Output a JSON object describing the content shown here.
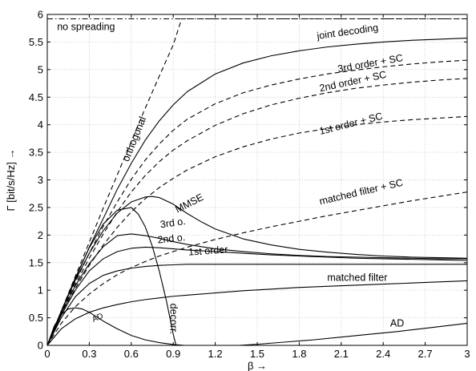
{
  "chart_data": {
    "type": "line",
    "title": "",
    "xlabel": "β →",
    "ylabel": "Γ [bit/s/Hz] →",
    "xlim": [
      0,
      3
    ],
    "ylim": [
      0,
      6
    ],
    "xticks": [
      "0",
      "0.3",
      "0.6",
      "0.9",
      "1.2",
      "1.5",
      "1.8",
      "2.1",
      "2.4",
      "2.7",
      "3"
    ],
    "yticks": [
      "0",
      "0.5",
      "1",
      "1.5",
      "2",
      "2.5",
      "3",
      "3.5",
      "4",
      "4.5",
      "5",
      "5.5",
      "6"
    ],
    "grid": true,
    "legend": "none",
    "annotations": [
      {
        "text": "no spreading",
        "x": 0.07,
        "y": 5.72,
        "rotate": 0
      },
      {
        "text": "joint decoding",
        "x": 1.93,
        "y": 5.55,
        "rotate": -8
      },
      {
        "text": "3rd order + SC",
        "x": 2.08,
        "y": 4.95,
        "rotate": -10
      },
      {
        "text": "2nd order + SC",
        "x": 1.95,
        "y": 4.6,
        "rotate": -12
      },
      {
        "text": "1st order + SC",
        "x": 1.95,
        "y": 3.82,
        "rotate": -14
      },
      {
        "text": "matched filter + SC",
        "x": 1.95,
        "y": 2.55,
        "rotate": -13
      },
      {
        "text": "orthogonal",
        "x": 0.58,
        "y": 3.32,
        "rotate": -68
      },
      {
        "text": "MMSE",
        "x": 0.93,
        "y": 2.4,
        "rotate": -27
      },
      {
        "text": "3rd o.",
        "x": 0.81,
        "y": 2.13,
        "rotate": -8
      },
      {
        "text": "2nd o.",
        "x": 0.79,
        "y": 1.85,
        "rotate": -6
      },
      {
        "text": "1st order",
        "x": 1.01,
        "y": 1.63,
        "rotate": -4
      },
      {
        "text": "matched filter",
        "x": 2.0,
        "y": 1.17,
        "rotate": 0
      },
      {
        "text": "decorr.",
        "x": 0.88,
        "y": 0.76,
        "rotate": 90
      },
      {
        "text": "AD",
        "x": 2.45,
        "y": 0.34,
        "rotate": 0
      },
      {
        "text": "AD",
        "x": 0.33,
        "y": 0.42,
        "rotate": -24,
        "small": true
      }
    ],
    "series": [
      {
        "style": "dash-dot",
        "x": [
          0,
          3
        ],
        "y": [
          5.92,
          5.92
        ]
      },
      {
        "style": "dashed",
        "x": [
          0,
          0.1,
          0.2,
          0.3,
          0.4,
          0.5,
          0.6,
          0.7,
          0.8,
          0.9,
          0.96,
          3
        ],
        "y": [
          0,
          0.62,
          1.25,
          1.87,
          2.49,
          3.09,
          3.7,
          4.3,
          4.88,
          5.45,
          5.92,
          5.92
        ]
      },
      {
        "style": "solid",
        "x": [
          0,
          0.1,
          0.2,
          0.3,
          0.4,
          0.5,
          0.6,
          0.7,
          0.8,
          0.9,
          1.0,
          1.2,
          1.4,
          1.6,
          1.8,
          2.0,
          2.2,
          2.4,
          2.6,
          2.8,
          3.0
        ],
        "y": [
          0,
          0.62,
          1.2,
          1.78,
          2.3,
          2.83,
          3.3,
          3.72,
          4.07,
          4.36,
          4.6,
          4.92,
          5.12,
          5.25,
          5.34,
          5.41,
          5.46,
          5.5,
          5.53,
          5.55,
          5.57
        ]
      },
      {
        "style": "dashed",
        "x": [
          0,
          0.1,
          0.2,
          0.3,
          0.4,
          0.5,
          0.6,
          0.7,
          0.8,
          0.9,
          1.0,
          1.2,
          1.4,
          1.6,
          1.8,
          2.0,
          2.2,
          2.4,
          2.6,
          2.8,
          3.0
        ],
        "y": [
          0,
          0.6,
          1.15,
          1.67,
          2.16,
          2.6,
          3.01,
          3.36,
          3.65,
          3.9,
          4.1,
          4.38,
          4.58,
          4.72,
          4.83,
          4.92,
          4.99,
          5.05,
          5.1,
          5.14,
          5.17
        ]
      },
      {
        "style": "dashed",
        "x": [
          0,
          0.1,
          0.2,
          0.3,
          0.4,
          0.5,
          0.6,
          0.7,
          0.8,
          0.9,
          1.0,
          1.2,
          1.4,
          1.6,
          1.8,
          2.0,
          2.2,
          2.4,
          2.6,
          2.8,
          3.0
        ],
        "y": [
          0,
          0.58,
          1.1,
          1.58,
          2.02,
          2.42,
          2.78,
          3.08,
          3.33,
          3.54,
          3.71,
          3.99,
          4.2,
          4.36,
          4.48,
          4.58,
          4.66,
          4.72,
          4.77,
          4.81,
          4.84
        ]
      },
      {
        "style": "dashed",
        "x": [
          0,
          0.1,
          0.2,
          0.3,
          0.4,
          0.5,
          0.6,
          0.7,
          0.8,
          0.9,
          1.0,
          1.2,
          1.4,
          1.6,
          1.8,
          2.0,
          2.2,
          2.4,
          2.6,
          2.8,
          3.0
        ],
        "y": [
          0,
          0.55,
          1.03,
          1.45,
          1.82,
          2.14,
          2.42,
          2.66,
          2.86,
          3.03,
          3.18,
          3.42,
          3.6,
          3.74,
          3.85,
          3.93,
          4.0,
          4.05,
          4.09,
          4.12,
          4.15
        ]
      },
      {
        "style": "dashed",
        "x": [
          0,
          0.1,
          0.2,
          0.3,
          0.4,
          0.5,
          0.6,
          0.7,
          0.8,
          0.9,
          1.0,
          1.2,
          1.4,
          1.6,
          1.8,
          2.0,
          2.2,
          2.4,
          2.6,
          2.8,
          3.0
        ],
        "y": [
          0,
          0.4,
          0.7,
          0.93,
          1.12,
          1.28,
          1.41,
          1.52,
          1.62,
          1.7,
          1.78,
          1.92,
          2.04,
          2.15,
          2.25,
          2.35,
          2.44,
          2.53,
          2.62,
          2.7,
          2.78
        ]
      },
      {
        "style": "solid",
        "x": [
          0,
          0.1,
          0.2,
          0.3,
          0.4,
          0.5,
          0.6,
          0.7,
          0.75,
          0.8,
          0.9,
          1.0,
          1.1,
          1.2,
          1.4,
          1.6,
          1.8,
          2.0,
          2.2,
          2.4,
          2.6,
          2.8,
          3.0
        ],
        "y": [
          0,
          0.62,
          1.18,
          1.67,
          2.08,
          2.4,
          2.6,
          2.69,
          2.7,
          2.68,
          2.56,
          2.39,
          2.24,
          2.11,
          1.93,
          1.82,
          1.74,
          1.69,
          1.65,
          1.62,
          1.6,
          1.59,
          1.58
        ]
      },
      {
        "style": "solid",
        "x": [
          0,
          0.1,
          0.2,
          0.3,
          0.4,
          0.5,
          0.6,
          0.7,
          0.8,
          0.9,
          1.0,
          1.2,
          1.4,
          1.6,
          1.8,
          2.0,
          2.2,
          2.4,
          2.6,
          2.8,
          3.0
        ],
        "y": [
          0,
          0.58,
          1.08,
          1.48,
          1.79,
          1.99,
          2.02,
          1.99,
          1.94,
          1.88,
          1.83,
          1.75,
          1.7,
          1.66,
          1.63,
          1.61,
          1.6,
          1.59,
          1.58,
          1.57,
          1.57
        ]
      },
      {
        "style": "solid",
        "x": [
          0,
          0.1,
          0.2,
          0.3,
          0.4,
          0.5,
          0.6,
          0.7,
          0.8,
          0.9,
          1.0,
          1.2,
          1.4,
          1.6,
          1.8,
          2.0,
          2.2,
          2.4,
          2.6,
          2.8,
          3.0
        ],
        "y": [
          0,
          0.55,
          1.0,
          1.35,
          1.57,
          1.7,
          1.76,
          1.78,
          1.77,
          1.75,
          1.73,
          1.7,
          1.67,
          1.64,
          1.62,
          1.6,
          1.58,
          1.57,
          1.56,
          1.55,
          1.54
        ]
      },
      {
        "style": "solid",
        "x": [
          0,
          0.1,
          0.2,
          0.3,
          0.4,
          0.5,
          0.6,
          0.7,
          0.8,
          0.9,
          1.0,
          1.2,
          1.4,
          1.6,
          1.8,
          2.0,
          2.2,
          2.4,
          2.6,
          2.8,
          3.0
        ],
        "y": [
          0,
          0.5,
          0.88,
          1.12,
          1.27,
          1.35,
          1.4,
          1.43,
          1.45,
          1.46,
          1.47,
          1.47,
          1.47,
          1.47,
          1.47,
          1.47,
          1.47,
          1.47,
          1.47,
          1.47,
          1.47
        ]
      },
      {
        "style": "solid",
        "x": [
          0,
          0.1,
          0.2,
          0.3,
          0.4,
          0.5,
          0.6,
          0.7,
          0.8,
          0.9,
          1.0,
          1.2,
          1.4,
          1.6,
          1.8,
          2.0,
          2.2,
          2.4,
          2.6,
          2.8,
          3.0
        ],
        "y": [
          0,
          0.3,
          0.48,
          0.6,
          0.68,
          0.74,
          0.79,
          0.83,
          0.86,
          0.89,
          0.91,
          0.95,
          0.99,
          1.02,
          1.05,
          1.07,
          1.09,
          1.11,
          1.13,
          1.15,
          1.17
        ]
      },
      {
        "style": "solid",
        "x": [
          0,
          0.1,
          0.2,
          0.3,
          0.4,
          0.5,
          0.6,
          0.65,
          0.7,
          0.75,
          0.8,
          0.85,
          0.88,
          0.9,
          0.92
        ],
        "y": [
          0,
          0.62,
          1.22,
          1.77,
          2.2,
          2.45,
          2.5,
          2.38,
          2.15,
          1.8,
          1.35,
          0.82,
          0.45,
          0.2,
          0
        ]
      },
      {
        "style": "solid",
        "x": [
          0,
          0.05,
          0.1,
          0.15,
          0.2,
          0.25,
          0.3,
          0.35,
          0.4,
          0.5,
          0.6,
          0.7,
          0.8,
          0.9,
          0.98
        ],
        "y": [
          0,
          0.35,
          0.56,
          0.66,
          0.68,
          0.66,
          0.6,
          0.52,
          0.44,
          0.3,
          0.18,
          0.1,
          0.05,
          0.015,
          0
        ]
      },
      {
        "style": "solid",
        "x": [
          1.37,
          1.5,
          1.7,
          1.9,
          2.1,
          2.3,
          2.5,
          2.7,
          2.9,
          3.0
        ],
        "y": [
          0,
          0.02,
          0.06,
          0.1,
          0.15,
          0.2,
          0.25,
          0.31,
          0.37,
          0.4
        ]
      }
    ]
  }
}
